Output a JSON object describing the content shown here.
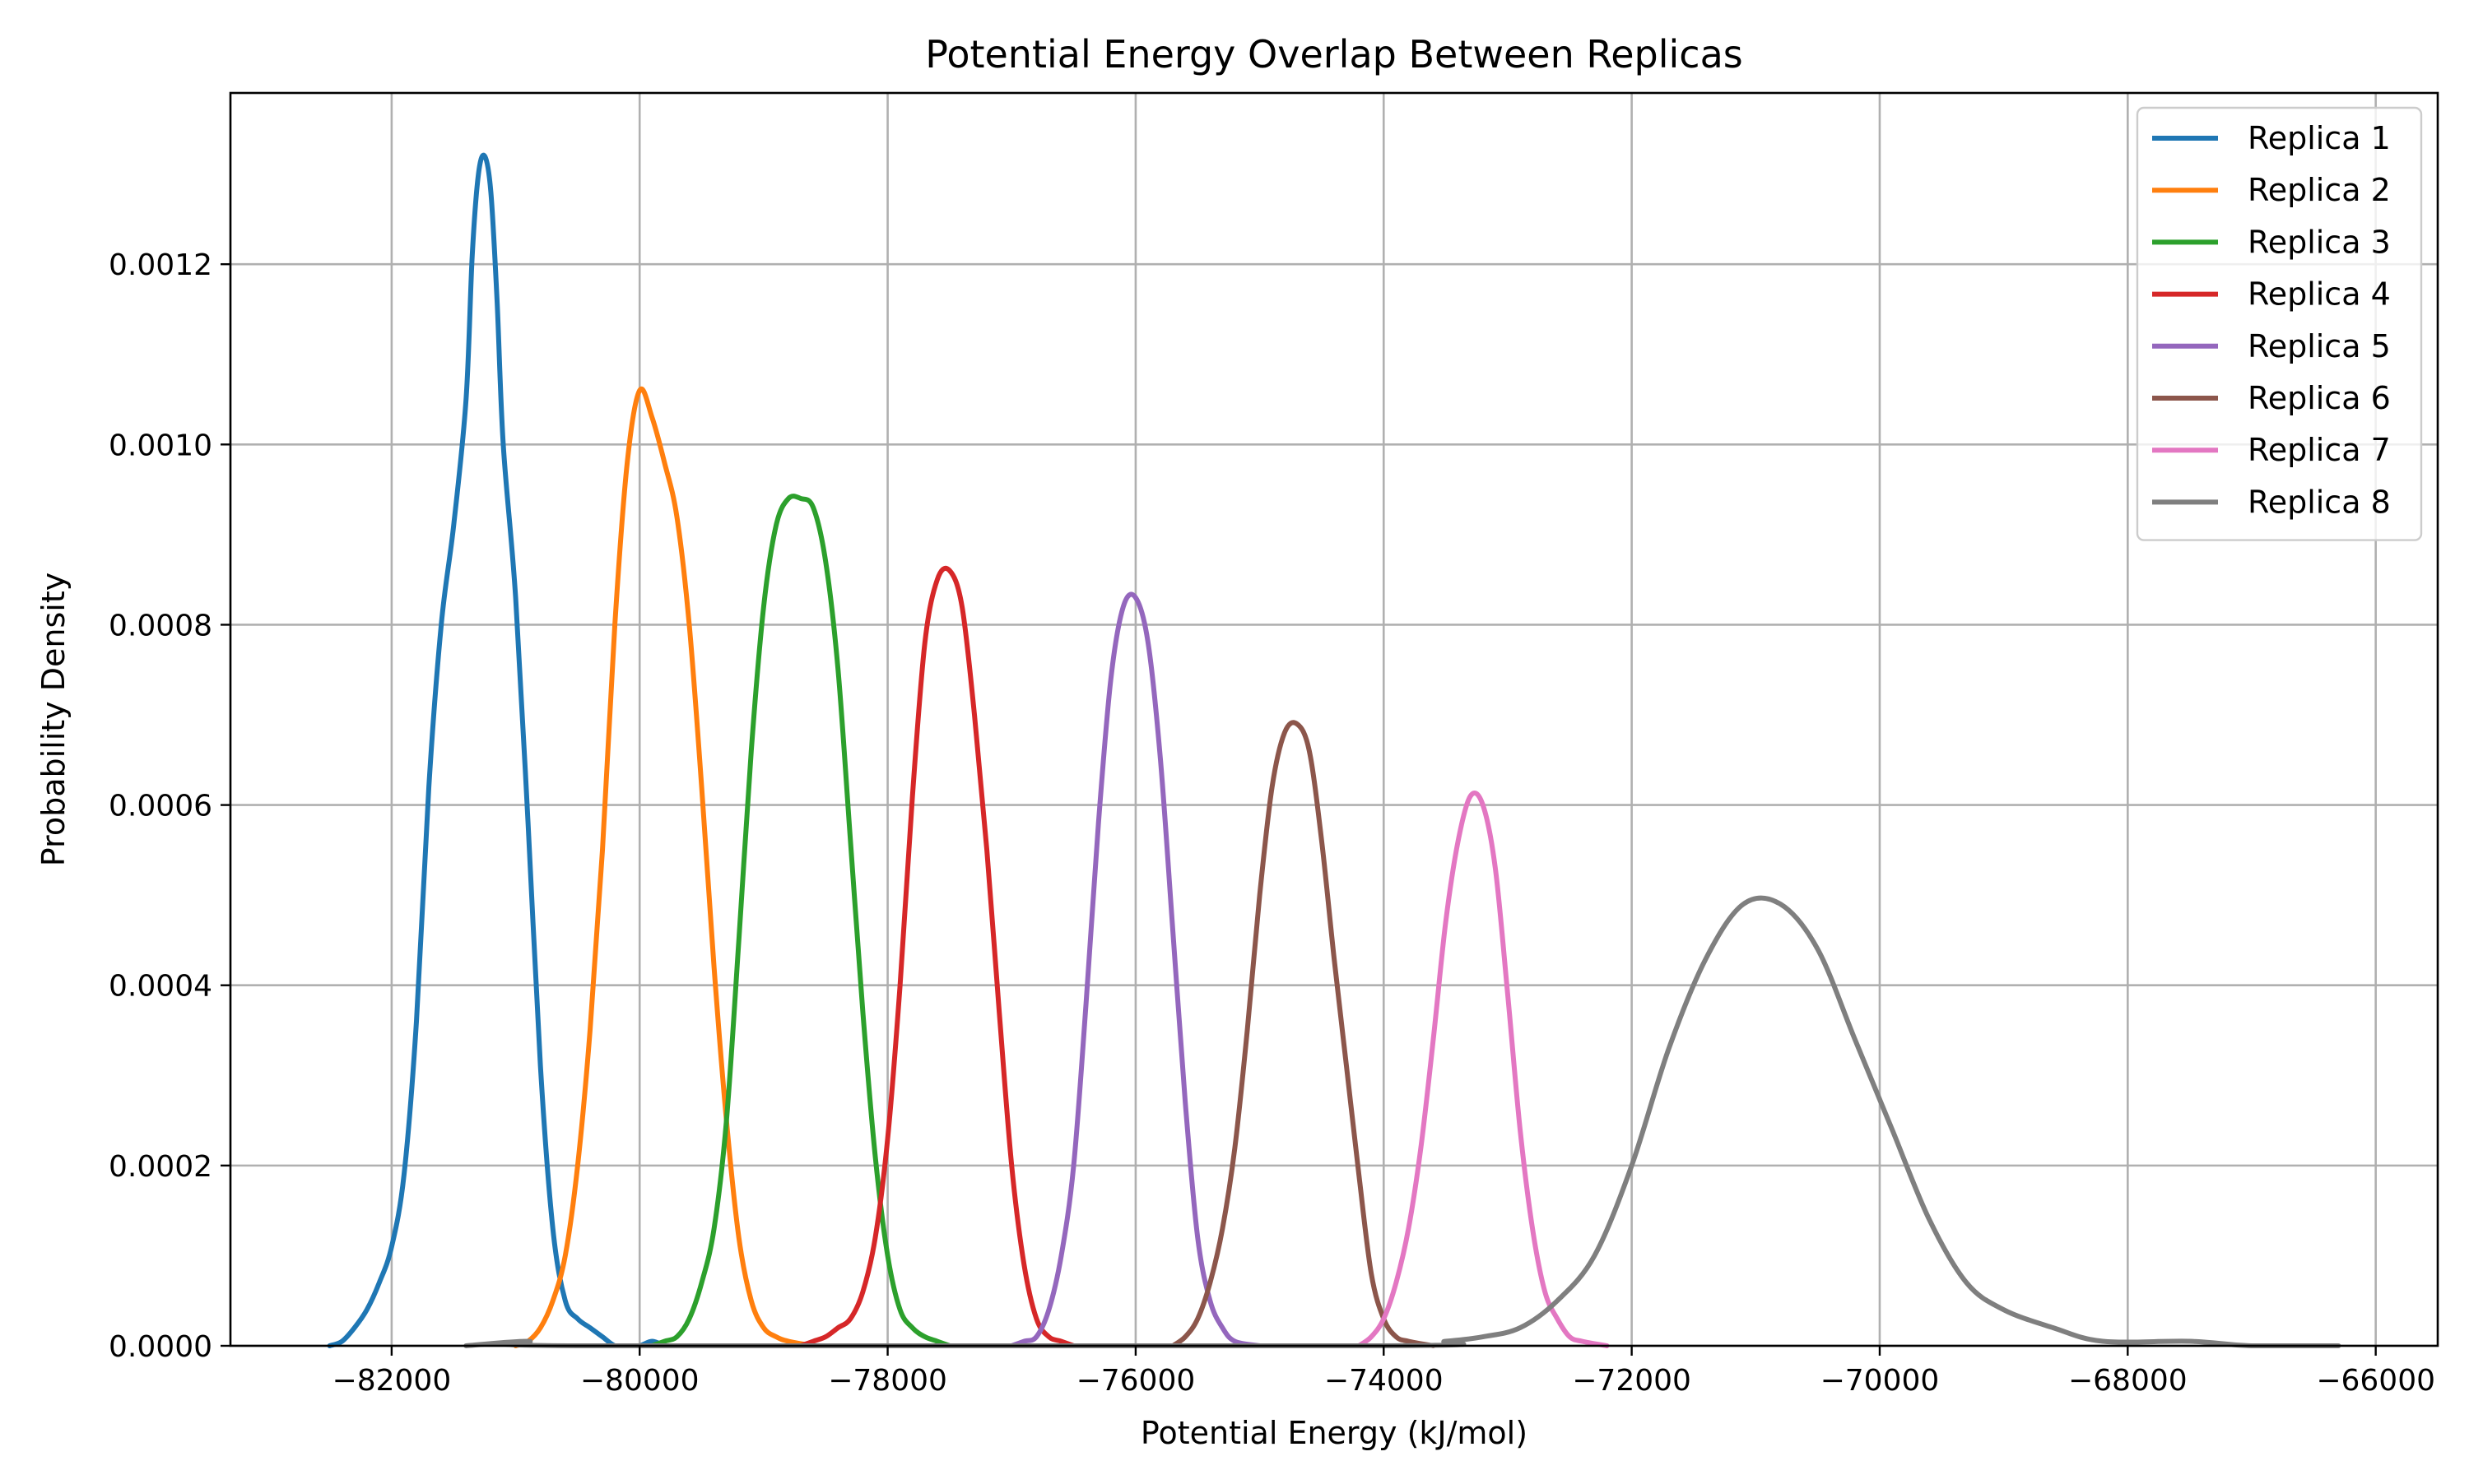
{
  "chart_data": {
    "type": "line",
    "title": "Potential Energy Overlap Between Replicas",
    "xlabel": "Potential Energy (kJ/mol)",
    "ylabel": "Probability Density",
    "xlim": [
      -83300,
      -65500
    ],
    "ylim": [
      0,
      0.00139
    ],
    "xticks": [
      -82000,
      -80000,
      -78000,
      -76000,
      -74000,
      -72000,
      -70000,
      -68000,
      -66000
    ],
    "xtick_labels": [
      "−82000",
      "−80000",
      "−78000",
      "−76000",
      "−74000",
      "−72000",
      "−70000",
      "−68000",
      "−66000"
    ],
    "yticks": [
      0,
      0.0002,
      0.0004,
      0.0006,
      0.0008,
      0.001,
      0.0012
    ],
    "ytick_labels": [
      "0.0000",
      "0.0002",
      "0.0004",
      "0.0006",
      "0.0008",
      "0.0010",
      "0.0012"
    ],
    "grid": true,
    "legend_position": "top-right",
    "series": [
      {
        "name": "Replica 1",
        "color": "#1f77b4",
        "points": [
          [
            -82500,
            0
          ],
          [
            -82400,
            5e-06
          ],
          [
            -82300,
            2e-05
          ],
          [
            -82200,
            4e-05
          ],
          [
            -82100,
            7e-05
          ],
          [
            -82000,
            0.00011
          ],
          [
            -81900,
            0.00019
          ],
          [
            -81800,
            0.00036
          ],
          [
            -81700,
            0.00062
          ],
          [
            -81600,
            0.0008
          ],
          [
            -81500,
            0.00091
          ],
          [
            -81400,
            0.00105
          ],
          [
            -81350,
            0.00121
          ],
          [
            -81300,
            0.0013
          ],
          [
            -81250,
            0.00132
          ],
          [
            -81200,
            0.00128
          ],
          [
            -81150,
            0.00116
          ],
          [
            -81100,
            0.001
          ],
          [
            -81000,
            0.00083
          ],
          [
            -80900,
            0.00058
          ],
          [
            -80800,
            0.00031
          ],
          [
            -80700,
            0.00013
          ],
          [
            -80600,
            5e-05
          ],
          [
            -80500,
            3e-05
          ],
          [
            -80400,
            2e-05
          ],
          [
            -80300,
            1e-05
          ],
          [
            -80200,
            0
          ],
          [
            -80100,
            0
          ],
          [
            -80000,
            0
          ],
          [
            -79900,
            5e-06
          ],
          [
            -79800,
            0
          ]
        ]
      },
      {
        "name": "Replica 2",
        "color": "#ff7f0e",
        "points": [
          [
            -81000,
            0
          ],
          [
            -80900,
            5e-06
          ],
          [
            -80800,
            2e-05
          ],
          [
            -80700,
            5e-05
          ],
          [
            -80600,
            0.0001
          ],
          [
            -80500,
            0.0002
          ],
          [
            -80400,
            0.00035
          ],
          [
            -80300,
            0.00055
          ],
          [
            -80200,
            0.0008
          ],
          [
            -80100,
            0.00098
          ],
          [
            -80000,
            0.00106
          ],
          [
            -79900,
            0.00103
          ],
          [
            -79800,
            0.00098
          ],
          [
            -79700,
            0.00092
          ],
          [
            -79600,
            0.0008
          ],
          [
            -79500,
            0.00062
          ],
          [
            -79400,
            0.00042
          ],
          [
            -79300,
            0.00025
          ],
          [
            -79200,
            0.00012
          ],
          [
            -79100,
            5e-05
          ],
          [
            -79000,
            2e-05
          ],
          [
            -78900,
            1e-05
          ],
          [
            -78800,
            5e-06
          ],
          [
            -78600,
            0
          ]
        ]
      },
      {
        "name": "Replica 3",
        "color": "#2ca02c",
        "points": [
          [
            -79900,
            0
          ],
          [
            -79800,
            5e-06
          ],
          [
            -79700,
            1e-05
          ],
          [
            -79600,
            3e-05
          ],
          [
            -79500,
            7e-05
          ],
          [
            -79400,
            0.00013
          ],
          [
            -79300,
            0.00025
          ],
          [
            -79200,
            0.00045
          ],
          [
            -79100,
            0.00066
          ],
          [
            -79000,
            0.00082
          ],
          [
            -78900,
            0.00091
          ],
          [
            -78800,
            0.00094
          ],
          [
            -78700,
            0.00094
          ],
          [
            -78600,
            0.00093
          ],
          [
            -78500,
            0.00087
          ],
          [
            -78400,
            0.00075
          ],
          [
            -78300,
            0.00056
          ],
          [
            -78200,
            0.00037
          ],
          [
            -78100,
            0.00021
          ],
          [
            -78000,
            0.0001
          ],
          [
            -77900,
            4e-05
          ],
          [
            -77800,
            2e-05
          ],
          [
            -77700,
            1e-05
          ],
          [
            -77600,
            5e-06
          ],
          [
            -77500,
            0
          ]
        ]
      },
      {
        "name": "Replica 4",
        "color": "#d62728",
        "points": [
          [
            -78700,
            0
          ],
          [
            -78600,
            5e-06
          ],
          [
            -78500,
            1e-05
          ],
          [
            -78400,
            2e-05
          ],
          [
            -78300,
            3e-05
          ],
          [
            -78200,
            6e-05
          ],
          [
            -78100,
            0.00012
          ],
          [
            -78000,
            0.00023
          ],
          [
            -77900,
            0.0004
          ],
          [
            -77800,
            0.00061
          ],
          [
            -77700,
            0.00078
          ],
          [
            -77600,
            0.00085
          ],
          [
            -77500,
            0.00086
          ],
          [
            -77400,
            0.00082
          ],
          [
            -77300,
            0.0007
          ],
          [
            -77200,
            0.00055
          ],
          [
            -77100,
            0.00037
          ],
          [
            -77000,
            0.0002
          ],
          [
            -76900,
            9e-05
          ],
          [
            -76800,
            3e-05
          ],
          [
            -76700,
            1e-05
          ],
          [
            -76600,
            5e-06
          ],
          [
            -76500,
            0
          ]
        ]
      },
      {
        "name": "Replica 5",
        "color": "#9467bd",
        "points": [
          [
            -77000,
            0
          ],
          [
            -76900,
            5e-06
          ],
          [
            -76800,
            1e-05
          ],
          [
            -76700,
            4e-05
          ],
          [
            -76600,
            0.0001
          ],
          [
            -76500,
            0.0002
          ],
          [
            -76400,
            0.00038
          ],
          [
            -76300,
            0.00058
          ],
          [
            -76200,
            0.00074
          ],
          [
            -76100,
            0.00082
          ],
          [
            -76000,
            0.00083
          ],
          [
            -75900,
            0.00078
          ],
          [
            -75800,
            0.00065
          ],
          [
            -75700,
            0.00046
          ],
          [
            -75600,
            0.00027
          ],
          [
            -75500,
            0.00012
          ],
          [
            -75400,
            5e-05
          ],
          [
            -75300,
            2e-05
          ],
          [
            -75200,
            5e-06
          ],
          [
            -75000,
            0
          ]
        ]
      },
      {
        "name": "Replica 6",
        "color": "#8c564b",
        "points": [
          [
            -75700,
            0
          ],
          [
            -75600,
            1e-05
          ],
          [
            -75500,
            3e-05
          ],
          [
            -75400,
            7e-05
          ],
          [
            -75300,
            0.00013
          ],
          [
            -75200,
            0.00022
          ],
          [
            -75100,
            0.00035
          ],
          [
            -75000,
            0.0005
          ],
          [
            -74900,
            0.00062
          ],
          [
            -74800,
            0.00068
          ],
          [
            -74700,
            0.00069
          ],
          [
            -74600,
            0.00066
          ],
          [
            -74500,
            0.00056
          ],
          [
            -74400,
            0.00043
          ],
          [
            -74300,
            0.00031
          ],
          [
            -74200,
            0.00019
          ],
          [
            -74100,
            8e-05
          ],
          [
            -74000,
            3e-05
          ],
          [
            -73900,
            1e-05
          ],
          [
            -73800,
            5e-06
          ],
          [
            -73600,
            0
          ]
        ]
      },
      {
        "name": "Replica 7",
        "color": "#e377c2",
        "points": [
          [
            -74200,
            0
          ],
          [
            -74100,
            1e-05
          ],
          [
            -74000,
            3e-05
          ],
          [
            -73900,
            7e-05
          ],
          [
            -73800,
            0.00013
          ],
          [
            -73700,
            0.00022
          ],
          [
            -73600,
            0.00034
          ],
          [
            -73500,
            0.00047
          ],
          [
            -73400,
            0.00056
          ],
          [
            -73300,
            0.00061
          ],
          [
            -73200,
            0.0006
          ],
          [
            -73100,
            0.00053
          ],
          [
            -73000,
            0.00039
          ],
          [
            -72900,
            0.00024
          ],
          [
            -72800,
            0.00013
          ],
          [
            -72700,
            6e-05
          ],
          [
            -72600,
            3e-05
          ],
          [
            -72500,
            1e-05
          ],
          [
            -72400,
            5e-06
          ],
          [
            -72200,
            0
          ]
        ]
      },
      {
        "name": "Replica 8",
        "color": "#7f7f7f",
        "points": [
          [
            -81400,
            0
          ],
          [
            -80900,
            5e-06
          ],
          [
            -80500,
            0
          ],
          [
            -74000,
            0
          ],
          [
            -73500,
            5e-06
          ],
          [
            -73200,
            1e-05
          ],
          [
            -72900,
            2e-05
          ],
          [
            -72600,
            5e-05
          ],
          [
            -72300,
            0.0001
          ],
          [
            -72000,
            0.0002
          ],
          [
            -71700,
            0.00033
          ],
          [
            -71400,
            0.00043
          ],
          [
            -71100,
            0.00049
          ],
          [
            -70800,
            0.00049
          ],
          [
            -70500,
            0.00044
          ],
          [
            -70200,
            0.00034
          ],
          [
            -69900,
            0.00024
          ],
          [
            -69600,
            0.00014
          ],
          [
            -69300,
            7e-05
          ],
          [
            -69000,
            4e-05
          ],
          [
            -68600,
            2e-05
          ],
          [
            -68200,
            5e-06
          ],
          [
            -67500,
            5e-06
          ],
          [
            -67000,
            0
          ],
          [
            -66300,
            0
          ]
        ]
      }
    ]
  }
}
